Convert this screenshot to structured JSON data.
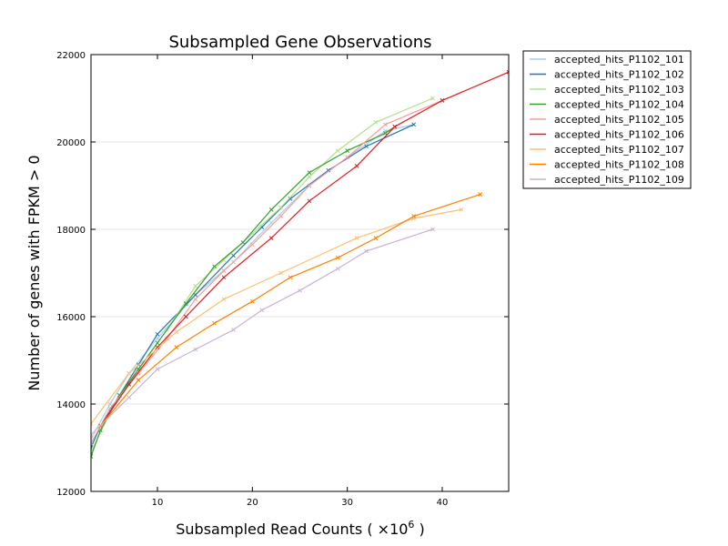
{
  "chart_data": {
    "type": "line",
    "title": "Subsampled Gene Observations",
    "xlabel": "Subsampled Read Counts ( ×10",
    "xlabel_exponent": "6",
    "xlabel_suffix": " )",
    "ylabel": "Number of genes with FPKM > 0",
    "xlim": [
      3,
      47
    ],
    "ylim": [
      12000,
      22000
    ],
    "x_ticks": [
      10,
      20,
      30,
      40
    ],
    "y_ticks": [
      12000,
      14000,
      16000,
      18000,
      20000,
      22000
    ],
    "x_tick_labels": [
      "10",
      "20",
      "30",
      "40"
    ],
    "y_tick_labels": [
      "12000",
      "14000",
      "16000",
      "18000",
      "20000",
      "22000"
    ],
    "grid": "horizontal",
    "legend_position": "outside-right",
    "series": [
      {
        "name": "accepted_hits_P1102_101",
        "color": "#a6cee3",
        "x": [
          3,
          5,
          7,
          10,
          14,
          18,
          22,
          26,
          30,
          34,
          37
        ],
        "y": [
          13200,
          14000,
          14700,
          15500,
          16500,
          17250,
          18150,
          19000,
          19650,
          20250,
          20400
        ]
      },
      {
        "name": "accepted_hits_P1102_102",
        "color": "#1f78b4",
        "x": [
          3,
          4,
          6,
          8,
          10,
          14,
          18,
          21,
          24,
          28,
          32,
          37
        ],
        "y": [
          13000,
          13500,
          14200,
          14900,
          15600,
          16500,
          17400,
          18050,
          18700,
          19350,
          19900,
          20400
        ]
      },
      {
        "name": "accepted_hits_P1102_103",
        "color": "#b2df8a",
        "x": [
          3,
          5,
          8,
          11,
          14,
          17,
          20,
          23,
          26,
          29,
          33,
          39
        ],
        "y": [
          12900,
          13800,
          14800,
          15700,
          16700,
          17300,
          17900,
          18500,
          19200,
          19800,
          20450,
          21000
        ]
      },
      {
        "name": "accepted_hits_P1102_104",
        "color": "#33a02c",
        "x": [
          3,
          4,
          6,
          8,
          10,
          13,
          16,
          19,
          22,
          26,
          30,
          34,
          35
        ],
        "y": [
          12800,
          13400,
          14200,
          14800,
          15400,
          16300,
          17150,
          17700,
          18450,
          19300,
          19800,
          20200,
          20350
        ]
      },
      {
        "name": "accepted_hits_P1102_105",
        "color": "#fb9a99",
        "x": [
          3,
          5,
          8,
          11,
          14,
          17,
          20,
          23,
          26,
          30,
          34,
          40
        ],
        "y": [
          13100,
          13900,
          14700,
          15500,
          16400,
          17050,
          17650,
          18300,
          19000,
          19650,
          20400,
          20950
        ]
      },
      {
        "name": "accepted_hits_P1102_106",
        "color": "#e31a1c",
        "x": [
          4,
          7,
          10,
          13,
          17,
          22,
          26,
          31,
          35,
          40,
          47
        ],
        "y": [
          13500,
          14450,
          15300,
          16000,
          16900,
          17800,
          18650,
          19450,
          20350,
          20950,
          21600
        ]
      },
      {
        "name": "accepted_hits_P1102_107",
        "color": "#fdbf6f",
        "x": [
          3,
          7,
          12,
          17,
          23,
          31,
          37,
          42
        ],
        "y": [
          13550,
          14700,
          15650,
          16400,
          17000,
          17800,
          18250,
          18450
        ]
      },
      {
        "name": "accepted_hits_P1102_108",
        "color": "#ff7f00",
        "x": [
          4,
          8,
          12,
          16,
          20,
          24,
          29,
          33,
          37,
          44
        ],
        "y": [
          13500,
          14550,
          15300,
          15850,
          16350,
          16900,
          17350,
          17800,
          18300,
          18800
        ]
      },
      {
        "name": "accepted_hits_P1102_109",
        "color": "#cab2d6",
        "x": [
          3,
          7,
          10,
          14,
          18,
          21,
          25,
          29,
          32,
          39
        ],
        "y": [
          13300,
          14150,
          14800,
          15250,
          15700,
          16150,
          16600,
          17100,
          17500,
          18000
        ]
      }
    ]
  }
}
